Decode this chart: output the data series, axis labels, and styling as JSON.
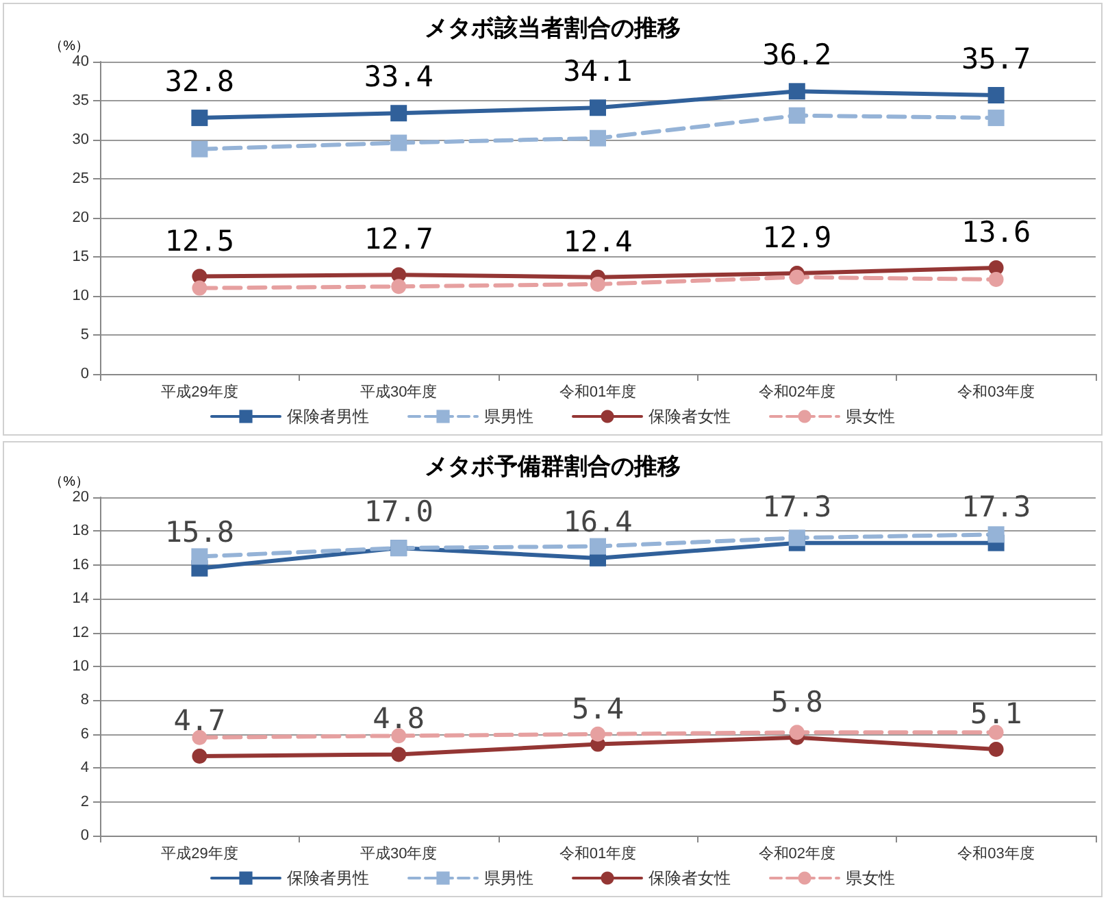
{
  "chart_data": [
    {
      "type": "line",
      "title": "メタボ該当者割合の推移",
      "ylabel": "（%）",
      "categories": [
        "平成29年度",
        "平成30年度",
        "令和01年度",
        "令和02年度",
        "令和03年度"
      ],
      "ylim": [
        0,
        40
      ],
      "yticks": [
        0,
        5,
        10,
        15,
        20,
        25,
        30,
        35,
        40
      ],
      "grid": "y",
      "legend": "bottom",
      "series": [
        {
          "name": "保険者男性",
          "color": "#30609a",
          "marker": "square",
          "line_style": "solid",
          "values": [
            32.8,
            33.4,
            34.1,
            36.2,
            35.7
          ],
          "value_labels": [
            "32.8",
            "33.4",
            "34.1",
            "36.2",
            "35.7"
          ]
        },
        {
          "name": "県男性",
          "color": "#95b3d7",
          "marker": "square",
          "line_style": "dashed",
          "values": [
            28.8,
            29.6,
            30.2,
            33.1,
            32.8
          ]
        },
        {
          "name": "保険者女性",
          "color": "#943634",
          "marker": "circle",
          "line_style": "solid",
          "values": [
            12.5,
            12.7,
            12.4,
            12.9,
            13.6
          ],
          "value_labels": [
            "12.5",
            "12.7",
            "12.4",
            "12.9",
            "13.6"
          ]
        },
        {
          "name": "県女性",
          "color": "#e6a0a0",
          "marker": "circle",
          "line_style": "dashed",
          "values": [
            11.0,
            11.2,
            11.5,
            12.4,
            12.1
          ]
        }
      ]
    },
    {
      "type": "line",
      "title": "メタボ予備群割合の推移",
      "ylabel": "（%）",
      "categories": [
        "平成29年度",
        "平成30年度",
        "令和01年度",
        "令和02年度",
        "令和03年度"
      ],
      "ylim": [
        0,
        20
      ],
      "yticks": [
        0,
        2,
        4,
        6,
        8,
        10,
        12,
        14,
        16,
        18,
        20
      ],
      "grid": "y",
      "legend": "bottom",
      "series": [
        {
          "name": "保険者男性",
          "color": "#30609a",
          "marker": "square",
          "line_style": "solid",
          "values": [
            15.8,
            17.0,
            16.4,
            17.3,
            17.3
          ],
          "value_labels": [
            "15.8",
            "17.0",
            "16.4",
            "17.3",
            "17.3"
          ]
        },
        {
          "name": "県男性",
          "color": "#95b3d7",
          "marker": "square",
          "line_style": "dashed",
          "values": [
            16.5,
            17.0,
            17.1,
            17.6,
            17.8
          ]
        },
        {
          "name": "保険者女性",
          "color": "#943634",
          "marker": "circle",
          "line_style": "solid",
          "values": [
            4.7,
            4.8,
            5.4,
            5.8,
            5.1
          ],
          "value_labels": [
            "4.7",
            "4.8",
            "5.4",
            "5.8",
            "5.1"
          ]
        },
        {
          "name": "県女性",
          "color": "#e6a0a0",
          "marker": "circle",
          "line_style": "dashed",
          "values": [
            5.8,
            5.9,
            6.0,
            6.1,
            6.1
          ]
        }
      ]
    }
  ]
}
